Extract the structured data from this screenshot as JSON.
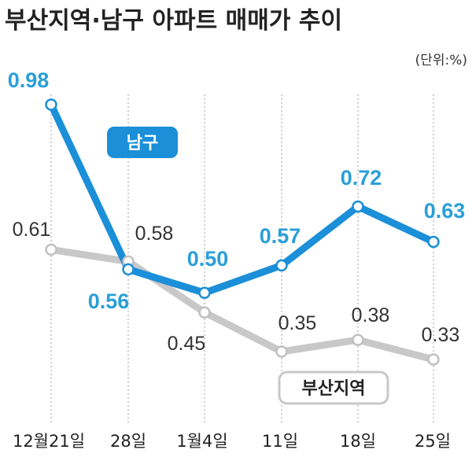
{
  "chart_data": {
    "type": "line",
    "title": "부산지역·남구 아파트 매매가 추이",
    "unit_label": "(단위:%)",
    "categories": [
      "12월21일",
      "28일",
      "1월4일",
      "11일",
      "18일",
      "25일"
    ],
    "series": [
      {
        "name": "남구",
        "values": [
          0.98,
          0.56,
          0.5,
          0.57,
          0.72,
          0.63
        ],
        "labels": [
          "0.98",
          "0.56",
          "0.50",
          "0.57",
          "0.72",
          "0.63"
        ],
        "color": "#1b8fd8"
      },
      {
        "name": "부산지역",
        "values": [
          0.61,
          0.58,
          0.45,
          0.35,
          0.38,
          0.33
        ],
        "labels": [
          "0.61",
          "0.58",
          "0.45",
          "0.35",
          "0.38",
          "0.33"
        ],
        "color": "#c8c8c8"
      }
    ],
    "ylim": [
      0.25,
      1.05
    ],
    "grid": "vertical-dotted",
    "legend": "inline"
  }
}
